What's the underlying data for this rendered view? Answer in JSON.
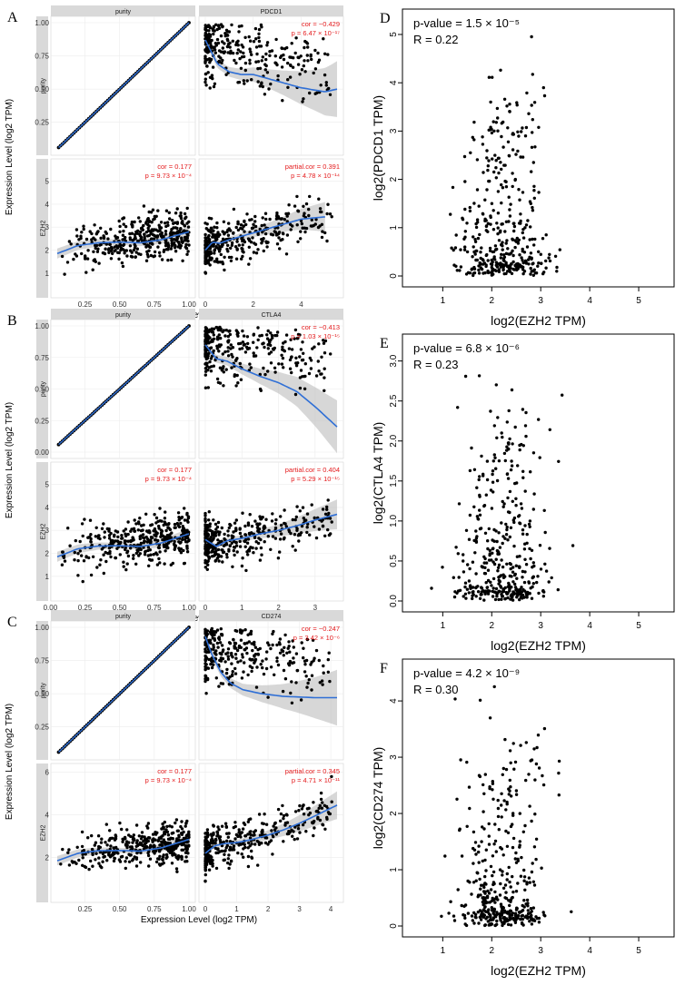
{
  "figure": {
    "rows": [
      {
        "label": "A",
        "gene": "PDCD1",
        "strip_left": "purity",
        "strip_right": "PDCD1",
        "row_purity_label": "purity",
        "row_ezh2_label": "EZH2",
        "ylabel": "Expression Level (log2 TPM)",
        "xlabel": "Expression Level (log2 TPM)",
        "tr_cor": "cor = −0.429",
        "tr_p": "p = 6.47 × 10⁻¹⁷",
        "bl_cor": "cor = 0.177",
        "bl_p": "p = 9.73 × 10⁻⁴",
        "br_cor": "partial.cor = 0.391",
        "br_p": "p = 4.78 × 10⁻¹⁴",
        "purity_ticks": [
          "0.25",
          "0.50",
          "0.75",
          "1.00"
        ],
        "ezh2_ticks": [
          "1",
          "2",
          "3",
          "4",
          "5"
        ],
        "gene_ticks": [
          "0",
          "2",
          "4"
        ],
        "gene_xmax": 5.5,
        "ezh2_range": [
          0.2,
          5.7
        ],
        "gene_fit": [
          [
            0,
            0.87
          ],
          [
            0.5,
            0.69
          ],
          [
            1,
            0.63
          ],
          [
            1.5,
            0.61
          ],
          [
            2,
            0.61
          ],
          [
            3,
            0.56
          ],
          [
            4,
            0.51
          ],
          [
            5,
            0.48
          ],
          [
            5.5,
            0.5
          ]
        ],
        "ezh2_fit": [
          [
            0.05,
            1.85
          ],
          [
            0.2,
            2.2
          ],
          [
            0.35,
            2.32
          ],
          [
            0.5,
            2.35
          ],
          [
            0.65,
            2.32
          ],
          [
            0.8,
            2.45
          ],
          [
            1.0,
            2.8
          ]
        ],
        "ezh2_gene_fit": [
          [
            0,
            2.0
          ],
          [
            0.3,
            2.35
          ],
          [
            0.6,
            2.3
          ],
          [
            1,
            2.45
          ],
          [
            2,
            2.75
          ],
          [
            3,
            3.05
          ],
          [
            4,
            3.35
          ],
          [
            5,
            3.45
          ]
        ]
      },
      {
        "label": "B",
        "gene": "CTLA4",
        "strip_left": "purity",
        "strip_right": "CTLA4",
        "row_purity_label": "purity",
        "row_ezh2_label": "EZH2",
        "ylabel": "Expression Level (log2 TPM)",
        "xlabel": "Expression Level (log2 TPM)",
        "tr_cor": "cor = −0.413",
        "tr_p": "p = 1.03 × 10⁻¹⁵",
        "bl_cor": "cor = 0.177",
        "bl_p": "p = 9.73 × 10⁻⁴",
        "br_cor": "partial.cor = 0.404",
        "br_p": "p = 5.29 × 10⁻¹⁵",
        "purity_ticks": [
          "0.00",
          "0.25",
          "0.50",
          "0.75",
          "1.00"
        ],
        "ezh2_ticks": [
          "1",
          "2",
          "3",
          "4",
          "5"
        ],
        "gene_ticks": [
          "0",
          "1",
          "2",
          "3"
        ],
        "gene_xmax": 3.6,
        "ezh2_range": [
          0.2,
          5.7
        ],
        "gene_fit": [
          [
            0,
            0.85
          ],
          [
            0.3,
            0.74
          ],
          [
            0.6,
            0.72
          ],
          [
            1,
            0.66
          ],
          [
            1.5,
            0.6
          ],
          [
            2,
            0.55
          ],
          [
            2.5,
            0.48
          ],
          [
            3,
            0.36
          ],
          [
            3.6,
            0.2
          ]
        ],
        "ezh2_fit": [
          [
            0.05,
            1.85
          ],
          [
            0.2,
            2.2
          ],
          [
            0.35,
            2.32
          ],
          [
            0.5,
            2.33
          ],
          [
            0.65,
            2.3
          ],
          [
            0.8,
            2.45
          ],
          [
            1.0,
            2.85
          ]
        ],
        "ezh2_gene_fit": [
          [
            0,
            2.6
          ],
          [
            0.3,
            2.3
          ],
          [
            0.6,
            2.55
          ],
          [
            1,
            2.65
          ],
          [
            1.5,
            2.85
          ],
          [
            2,
            3.0
          ],
          [
            2.5,
            3.2
          ],
          [
            3,
            3.45
          ],
          [
            3.6,
            3.7
          ]
        ]
      },
      {
        "label": "C",
        "gene": "CD274",
        "strip_left": "purity",
        "strip_right": "CD274",
        "row_purity_label": "purity",
        "row_ezh2_label": "EZH2",
        "ylabel": "Expression Level (log2 TPM)",
        "xlabel": "Expression Level (log2 TPM)",
        "tr_cor": "cor = −0.247",
        "tr_p": "p = 3.42 × 10⁻⁶",
        "bl_cor": "cor = 0.177",
        "bl_p": "p = 9.73 × 10⁻⁴",
        "br_cor": "partial.cor = 0.345",
        "br_p": "p = 4.71 × 10⁻¹¹",
        "purity_ticks": [
          "0.25",
          "0.50",
          "0.75",
          "1.00"
        ],
        "ezh2_ticks": [
          "2",
          "4",
          "6"
        ],
        "gene_ticks": [
          "0",
          "1",
          "2",
          "3",
          "4"
        ],
        "gene_xmax": 4.2,
        "ezh2_range": [
          0.2,
          6.1
        ],
        "gene_fit": [
          [
            0,
            0.93
          ],
          [
            0.2,
            0.8
          ],
          [
            0.5,
            0.66
          ],
          [
            0.8,
            0.58
          ],
          [
            1.2,
            0.53
          ],
          [
            1.8,
            0.5
          ],
          [
            2.5,
            0.48
          ],
          [
            3.5,
            0.47
          ],
          [
            4.2,
            0.47
          ]
        ],
        "ezh2_fit": [
          [
            0.05,
            1.85
          ],
          [
            0.2,
            2.2
          ],
          [
            0.35,
            2.32
          ],
          [
            0.5,
            2.33
          ],
          [
            0.65,
            2.3
          ],
          [
            0.8,
            2.45
          ],
          [
            1.0,
            2.85
          ]
        ],
        "ezh2_gene_fit": [
          [
            0,
            2.2
          ],
          [
            0.3,
            2.55
          ],
          [
            0.6,
            2.65
          ],
          [
            1,
            2.7
          ],
          [
            1.5,
            2.85
          ],
          [
            2,
            3.05
          ],
          [
            2.5,
            3.3
          ],
          [
            3,
            3.6
          ],
          [
            3.5,
            3.95
          ],
          [
            4.2,
            4.45
          ]
        ]
      }
    ],
    "gepia": [
      {
        "label": "D",
        "pvalue": "p-value = 1.5 × 10⁻⁵",
        "r": "R = 0.22",
        "ylabel": "log2(PDCD1 TPM)",
        "xlabel": "log2(EZH2 TPM)",
        "xticks": [
          "1",
          "2",
          "3",
          "4",
          "5"
        ],
        "yticks": [
          "0",
          "1",
          "2",
          "3",
          "4",
          "5"
        ],
        "ymax": 5.3
      },
      {
        "label": "E",
        "pvalue": "p-value = 6.8 × 10⁻⁶",
        "r": "R = 0.23",
        "ylabel": "log2(CTLA4 TPM)",
        "xlabel": "log2(EZH2 TPM)",
        "xticks": [
          "1",
          "2",
          "3",
          "4",
          "5"
        ],
        "yticks": [
          "0.0",
          "0.5",
          "1.0",
          "1.5",
          "2.0",
          "2.5",
          "3.0"
        ],
        "ymax": 3.2
      },
      {
        "label": "F",
        "pvalue": "p-value = 4.2 × 10⁻⁹",
        "r": "R = 0.30",
        "ylabel": "log2(CD274 TPM)",
        "xlabel": "log2(EZH2 TPM)",
        "xticks": [
          "1",
          "2",
          "3",
          "4",
          "5"
        ],
        "yticks": [
          "0",
          "1",
          "2",
          "3",
          "4"
        ],
        "ymax": 4.55
      }
    ]
  },
  "chart_data": [
    {
      "type": "scatter",
      "panel": "A",
      "title": "",
      "series": [
        {
          "name": "purity vs PDCD1",
          "cor": -0.429
        },
        {
          "name": "purity vs EZH2",
          "cor": 0.177
        },
        {
          "name": "EZH2 vs PDCD1",
          "partial_cor": 0.391
        }
      ]
    },
    {
      "type": "scatter",
      "panel": "B",
      "title": "",
      "series": [
        {
          "name": "purity vs CTLA4",
          "cor": -0.413
        },
        {
          "name": "purity vs EZH2",
          "cor": 0.177
        },
        {
          "name": "EZH2 vs CTLA4",
          "partial_cor": 0.404
        }
      ]
    },
    {
      "type": "scatter",
      "panel": "C",
      "title": "",
      "series": [
        {
          "name": "purity vs CD274",
          "cor": -0.247
        },
        {
          "name": "purity vs EZH2",
          "cor": 0.177
        },
        {
          "name": "EZH2 vs CD274",
          "partial_cor": 0.345
        }
      ]
    },
    {
      "type": "scatter",
      "panel": "D",
      "xlabel": "log2(EZH2 TPM)",
      "ylabel": "log2(PDCD1 TPM)",
      "R": 0.22,
      "xlim": [
        0.4,
        5.5
      ],
      "ylim": [
        0,
        5.3
      ]
    },
    {
      "type": "scatter",
      "panel": "E",
      "xlabel": "log2(EZH2 TPM)",
      "ylabel": "log2(CTLA4 TPM)",
      "R": 0.23,
      "xlim": [
        0.4,
        5.5
      ],
      "ylim": [
        0,
        3.2
      ]
    },
    {
      "type": "scatter",
      "panel": "F",
      "xlabel": "log2(EZH2 TPM)",
      "ylabel": "log2(CD274 TPM)",
      "R": 0.3,
      "xlim": [
        0.4,
        5.5
      ],
      "ylim": [
        0,
        4.55
      ]
    }
  ]
}
